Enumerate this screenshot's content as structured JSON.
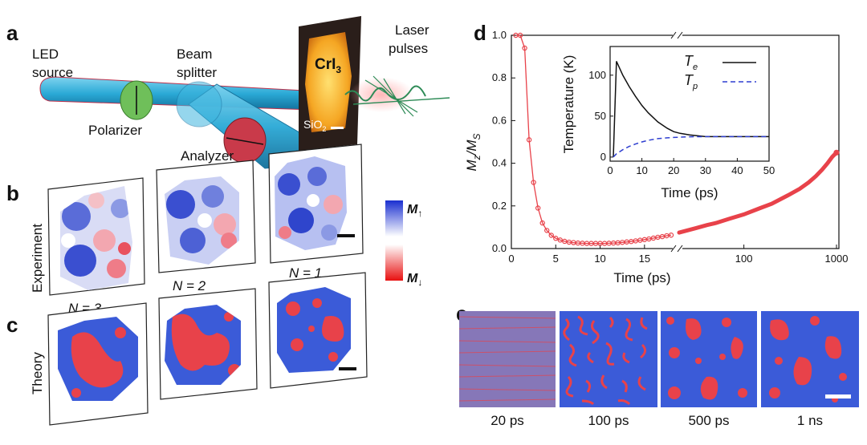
{
  "panels": {
    "a": {
      "label": "a",
      "led_line1": "LED",
      "led_line2": "source",
      "beam_line1": "Beam",
      "beam_line2": "splitter",
      "polarizer": "Polarizer",
      "analyzer": "Analyzer",
      "laser_line1": "Laser",
      "laser_line2": "pulses",
      "sample": "CrI",
      "sample_sub": "3",
      "substrate": "SiO",
      "substrate_sub": "2"
    },
    "b": {
      "label": "b",
      "row_label": "Experiment"
    },
    "c": {
      "label": "c",
      "row_label": "Theory"
    },
    "n_labels": [
      "N = 3",
      "N = 2",
      "N = 1"
    ],
    "colorbar": {
      "top": "M",
      "top_arrow": "↑",
      "bottom": "M",
      "bottom_arrow": "↓"
    },
    "d": {
      "label": "d"
    },
    "e": {
      "label": "e",
      "times": [
        "20 ps",
        "100 ps",
        "500 ps",
        "1 ns"
      ]
    }
  },
  "colors": {
    "blue": "#2f52d8",
    "red": "#e8424a",
    "beam": "#2aa9d6",
    "polarizer": "#6fbf5a",
    "analyzer": "#c93a4a",
    "sample": "#f5a623",
    "laser": "#2e8b57"
  },
  "chart_data": [
    {
      "type": "scatter",
      "panel": "d",
      "xlabel": "Time (ps)",
      "ylabel": "M_z/M_S",
      "ylim": [
        0.0,
        1.0
      ],
      "yticks": [
        0.0,
        0.2,
        0.4,
        0.6,
        0.8,
        1.0
      ],
      "x_segment1": {
        "xlim": [
          0,
          18
        ],
        "xticks": [
          0,
          5,
          10,
          15
        ]
      },
      "x_segment2": {
        "scale": "log",
        "xlim": [
          20,
          1000
        ],
        "xticks": [
          100,
          1000
        ]
      },
      "series": [
        {
          "x": [
            0.5,
            1.0,
            1.5,
            2.0,
            2.5,
            3.0,
            3.5,
            4.0,
            4.5,
            5.0,
            5.5,
            6.0,
            6.5,
            7.0,
            7.5,
            8.0,
            8.5,
            9.0,
            9.5,
            10.0,
            10.5,
            11.0,
            11.5,
            12.0,
            12.5,
            13.0,
            13.5,
            14.0,
            14.5,
            15.0,
            15.5,
            16.0,
            16.5,
            17.0,
            17.5,
            18.0
          ],
          "y": [
            1.0,
            1.0,
            0.94,
            0.51,
            0.31,
            0.19,
            0.12,
            0.085,
            0.062,
            0.048,
            0.04,
            0.034,
            0.03,
            0.028,
            0.026,
            0.025,
            0.024,
            0.024,
            0.024,
            0.024,
            0.024,
            0.025,
            0.026,
            0.027,
            0.029,
            0.031,
            0.033,
            0.036,
            0.039,
            0.042,
            0.045,
            0.049,
            0.053,
            0.056,
            0.06,
            0.063
          ]
        },
        {
          "x": [
            20,
            30,
            40,
            50,
            70,
            100,
            150,
            200,
            300,
            400,
            500,
            600,
            700,
            800,
            900,
            1000
          ],
          "y": [
            0.075,
            0.095,
            0.11,
            0.12,
            0.14,
            0.16,
            0.19,
            0.21,
            0.25,
            0.28,
            0.31,
            0.34,
            0.37,
            0.4,
            0.43,
            0.45
          ]
        }
      ]
    },
    {
      "type": "line",
      "panel": "d-inset",
      "xlabel": "Time (ps)",
      "ylabel": "Temperature (K)",
      "xlim": [
        0,
        50
      ],
      "ylim": [
        -5,
        135
      ],
      "xticks": [
        0,
        10,
        20,
        30,
        40,
        50
      ],
      "yticks": [
        0,
        50,
        100
      ],
      "legend": "top-right",
      "series": [
        {
          "name": "T",
          "name_sub": "e",
          "x": [
            1,
            2,
            4,
            6,
            8,
            10,
            12,
            15,
            18,
            20,
            22,
            25,
            30,
            35,
            40,
            45,
            50
          ],
          "y": [
            0,
            117,
            100,
            86,
            74,
            63,
            54,
            43,
            35,
            31,
            29,
            27,
            25,
            25,
            25,
            25,
            25
          ]
        },
        {
          "name": "T",
          "name_sub": "p",
          "x": [
            1,
            2,
            4,
            6,
            8,
            10,
            12,
            15,
            18,
            20,
            25,
            30,
            35,
            40,
            45,
            50
          ],
          "y": [
            0,
            4,
            9,
            13,
            16,
            18.5,
            20.5,
            22.5,
            23.5,
            24,
            24.8,
            25,
            25,
            25,
            25,
            25
          ]
        }
      ]
    }
  ]
}
